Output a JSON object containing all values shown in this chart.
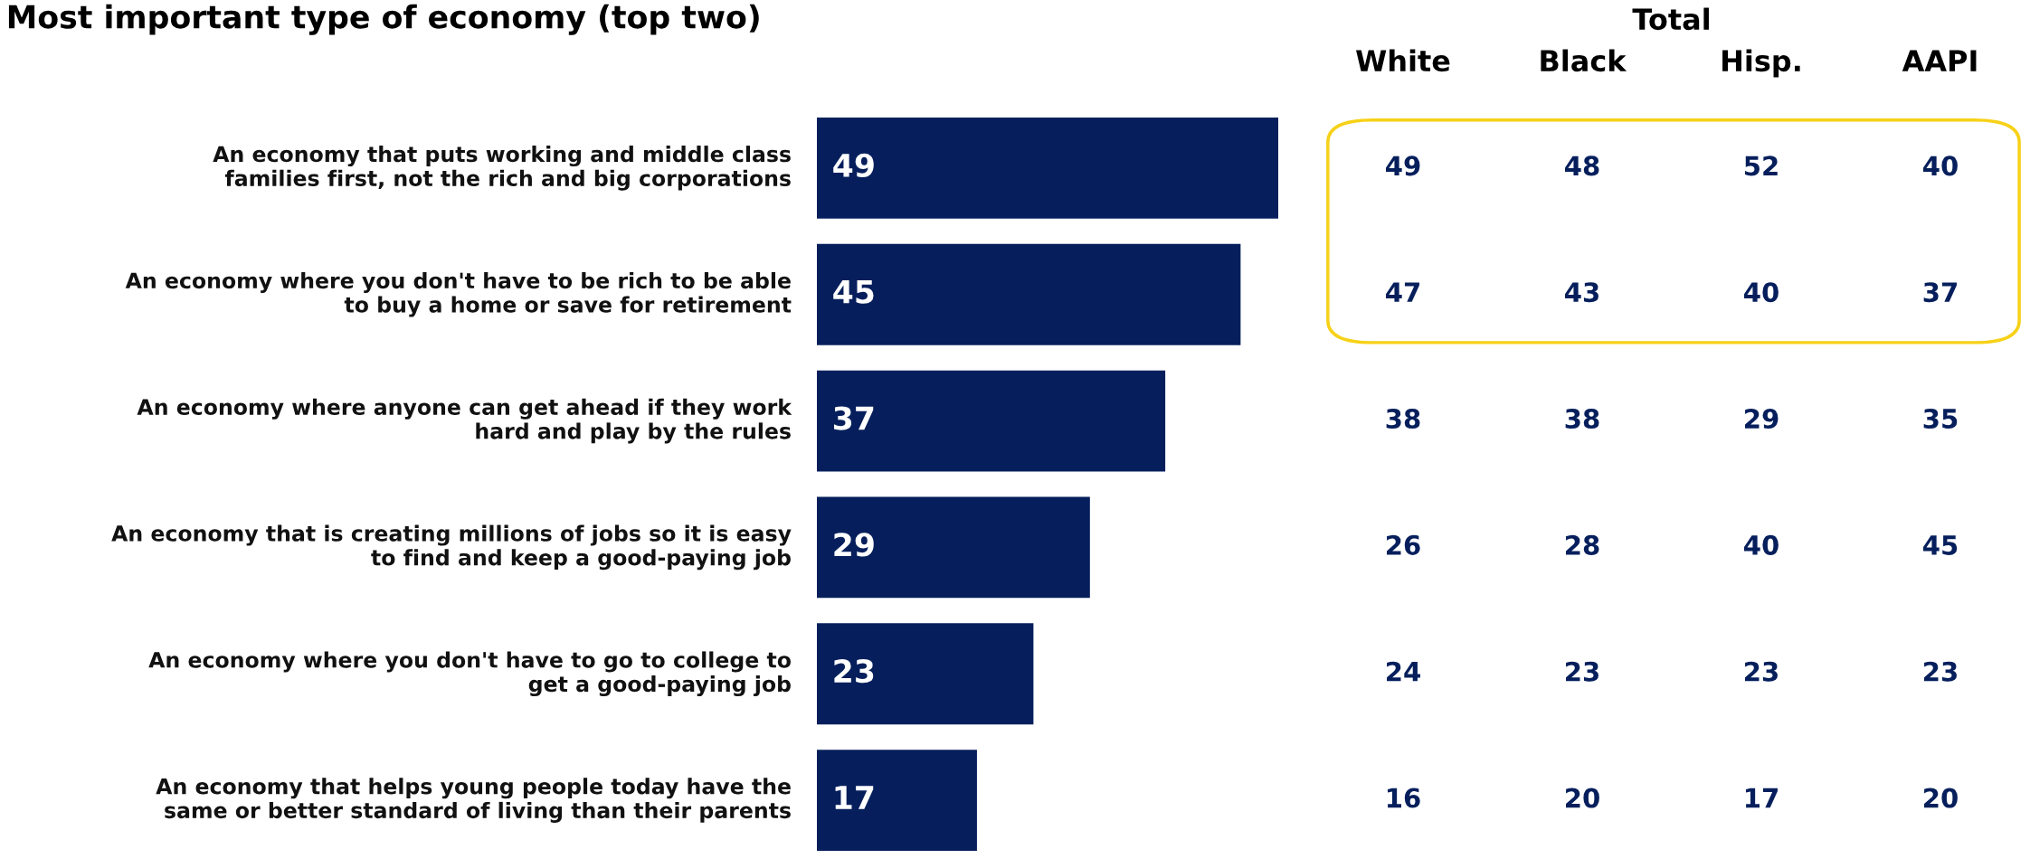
{
  "chart_data": [
    {
      "type": "bar",
      "orientation": "horizontal",
      "title": "Most important type of economy (top two)",
      "categories": [
        "An economy that puts working and middle class\nfamilies first, not the rich and big corporations",
        "An economy where you don't have to be rich to be able\nto buy a home or save for retirement",
        "An economy where anyone can get ahead if they work\nhard and play by the rules",
        "An economy that is creating millions of jobs so it is easy\nto find and keep a good-paying job",
        "An economy where you don't have to go to college to\nget a good-paying job",
        "An economy that helps young people today have the\nsame or better standard of living than their parents"
      ],
      "values": [
        49,
        45,
        37,
        29,
        23,
        17
      ],
      "color": "#061f5c",
      "data_labels": true
    },
    {
      "type": "heatmap",
      "title": "Total",
      "categories": [
        "White",
        "Black",
        "Hisp.",
        "AAPI"
      ],
      "y_categories": [
        null,
        null,
        null,
        null,
        null,
        null
      ],
      "cells": [
        [
          49,
          48,
          52,
          40
        ],
        [
          47,
          43,
          40,
          37
        ],
        [
          38,
          38,
          29,
          35
        ],
        [
          26,
          28,
          40,
          45
        ],
        [
          24,
          23,
          23,
          23
        ],
        [
          16,
          20,
          17,
          20
        ]
      ],
      "color": "#061f5c",
      "data_labels": true
    }
  ]
}
